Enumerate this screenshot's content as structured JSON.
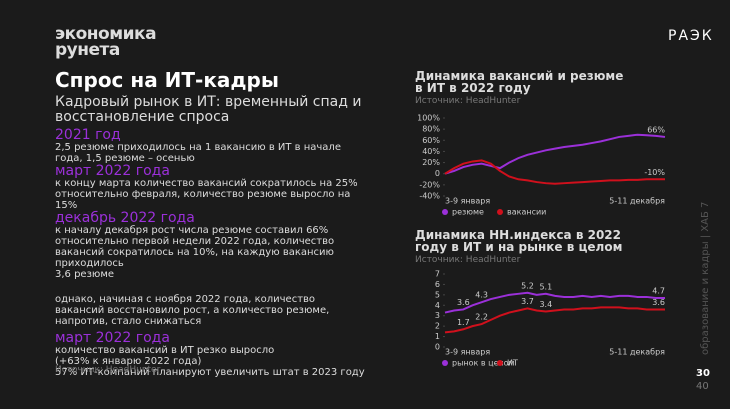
{
  "logo": "экономика рунета",
  "brand": "РАЭК",
  "title": "Спрос на ИТ-кадры",
  "subtitle": "Кадровый рынок в ИТ: временный спад и восстановление спроса",
  "sections": [
    {
      "heading": "2021 год",
      "lines": [
        "2,5 резюме приходилось на 1 вакансию в ИТ в начале года, 1,5 резюме – осенью"
      ]
    },
    {
      "heading": "март 2022 года",
      "lines": [
        "к концу марта количество вакансий сократилось на 25% относительно февраля, количество резюме выросло на 15%"
      ]
    },
    {
      "heading": "декабрь 2022 года",
      "lines": [
        "к началу декабря рост числа резюме составил 66% относительно первой недели 2022 года, количество вакансий сократилось на 10%, на каждую вакансию приходилось",
        "3,6 резюме"
      ]
    },
    {
      "lines": [
        "однако, начиная с ноября 2022 года, количество вакансий восстановило рост, а количество резюме, напротив, стало снижаться"
      ]
    },
    {
      "heading": "март 2022 года",
      "lines": [
        "количество вакансий в ИТ резко выросло",
        "(+63% к январю 2022 года)",
        "57% ИТ-компаний планируют увеличить штат в 2023 году"
      ]
    }
  ],
  "source": "Источник: HeadHunter",
  "sidebar": "образование и кадры | ХАБ 7",
  "page": "30",
  "total": "40",
  "chart_data": [
    {
      "type": "line",
      "title": "Динамика вакансий и резюме в ИТ в 2022 году",
      "subtitle": "Источник: HeadHunter",
      "categories": [
        "3-9 января",
        null,
        null,
        null,
        null,
        null,
        null,
        null,
        null,
        null,
        null,
        null,
        null,
        null,
        null,
        null,
        null,
        null,
        null,
        null,
        null,
        null,
        null,
        null,
        "5-11 декабря"
      ],
      "series": [
        {
          "name": "резюме",
          "color": "#9b30d9",
          "values": [
            0,
            5,
            12,
            16,
            18,
            14,
            10,
            20,
            28,
            34,
            38,
            42,
            45,
            48,
            50,
            52,
            55,
            58,
            62,
            66,
            68,
            70,
            69,
            68,
            66
          ],
          "value_labels": [
            null,
            null,
            null,
            null,
            null,
            null,
            null,
            null,
            null,
            null,
            null,
            null,
            null,
            null,
            null,
            null,
            null,
            null,
            null,
            null,
            null,
            null,
            null,
            null,
            "66%"
          ]
        },
        {
          "name": "вакансии",
          "color": "#d0101c",
          "values": [
            0,
            10,
            18,
            22,
            24,
            18,
            5,
            -5,
            -10,
            -12,
            -15,
            -17,
            -18,
            -17,
            -16,
            -15,
            -14,
            -13,
            -12,
            -12,
            -11,
            -11,
            -10,
            -10,
            -10
          ],
          "value_labels": [
            null,
            null,
            null,
            null,
            null,
            null,
            null,
            null,
            null,
            null,
            null,
            null,
            null,
            null,
            null,
            null,
            null,
            null,
            null,
            null,
            null,
            null,
            null,
            null,
            "-10%"
          ]
        }
      ],
      "ylim": [
        -40,
        100
      ],
      "yticks": [
        {
          "value": -40,
          "label": "-40%"
        },
        {
          "value": -20,
          "label": "-20%"
        },
        0,
        {
          "value": 20,
          "label": "20%"
        },
        {
          "value": 40,
          "label": "40%"
        },
        {
          "value": 60,
          "label": "60%"
        },
        {
          "value": 80,
          "label": "80%"
        },
        {
          "value": 100,
          "label": "100%"
        }
      ],
      "legend": "bottom-left"
    },
    {
      "type": "line",
      "title": "Динамика HH.индекса в 2022 году в ИТ и на рынке в целом",
      "subtitle": "Источник: HeadHunter",
      "categories": [
        "3-9 января",
        null,
        null,
        null,
        null,
        null,
        null,
        null,
        null,
        null,
        null,
        null,
        null,
        null,
        null,
        null,
        null,
        null,
        null,
        null,
        null,
        null,
        null,
        null,
        "5-11 декабря"
      ],
      "series": [
        {
          "name": "рынок в целом",
          "color": "#9b30d9",
          "values": [
            3.3,
            3.5,
            3.6,
            4.0,
            4.3,
            4.6,
            4.8,
            5.0,
            5.1,
            5.2,
            5.0,
            5.1,
            4.9,
            4.8,
            4.8,
            4.9,
            4.8,
            4.9,
            4.8,
            4.9,
            4.9,
            4.8,
            4.8,
            4.7,
            4.7
          ],
          "value_labels": [
            null,
            null,
            "3.6",
            null,
            "4.3",
            null,
            null,
            null,
            null,
            "5.2",
            null,
            "5.1",
            null,
            null,
            null,
            null,
            null,
            null,
            null,
            null,
            null,
            null,
            null,
            null,
            "4.7"
          ]
        },
        {
          "name": "ИТ",
          "color": "#d0101c",
          "values": [
            1.4,
            1.5,
            1.7,
            2.0,
            2.2,
            2.6,
            3.0,
            3.3,
            3.5,
            3.7,
            3.5,
            3.4,
            3.5,
            3.6,
            3.6,
            3.7,
            3.7,
            3.8,
            3.8,
            3.8,
            3.7,
            3.7,
            3.6,
            3.6,
            3.6
          ],
          "value_labels": [
            null,
            null,
            "1.7",
            null,
            "2.2",
            null,
            null,
            null,
            null,
            "3.7",
            null,
            "3.4",
            null,
            null,
            null,
            null,
            null,
            null,
            null,
            null,
            null,
            null,
            null,
            null,
            "3.6"
          ]
        }
      ],
      "ylim": [
        0,
        7
      ],
      "yticks": [
        0,
        1,
        2,
        3,
        4,
        5,
        6,
        7
      ],
      "legend": "bottom-left"
    }
  ]
}
